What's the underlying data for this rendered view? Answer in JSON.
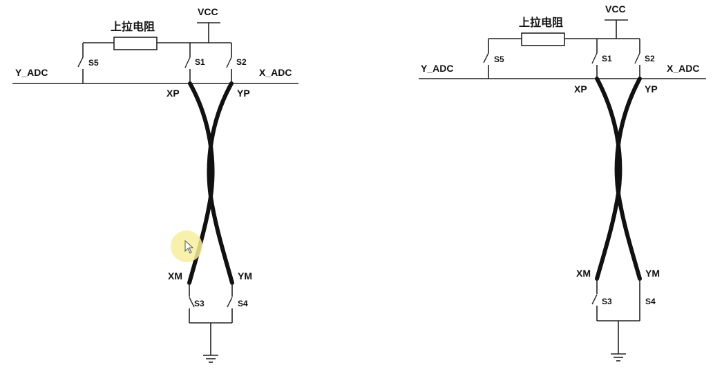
{
  "diagrams": [
    {
      "vcc": "VCC",
      "pullup": "上拉电阻",
      "y_adc": "Y_ADC",
      "x_adc": "X_ADC",
      "s1": "S1",
      "s2": "S2",
      "s3": "S3",
      "s4": "S4",
      "s5": "S5",
      "xp": "XP",
      "yp": "YP",
      "xm": "XM",
      "ym": "YM"
    },
    {
      "vcc": "VCC",
      "pullup": "上拉电阻",
      "y_adc": "Y_ADC",
      "x_adc": "X_ADC",
      "s1": "S1",
      "s2": "S2",
      "s3": "S3",
      "s4": "S4",
      "s5": "S5",
      "xp": "XP",
      "yp": "YP",
      "xm": "XM",
      "ym": "YM"
    }
  ],
  "cursor_highlight_color": "#f7ef9c",
  "icons": [
    "mouse-pointer-icon"
  ]
}
